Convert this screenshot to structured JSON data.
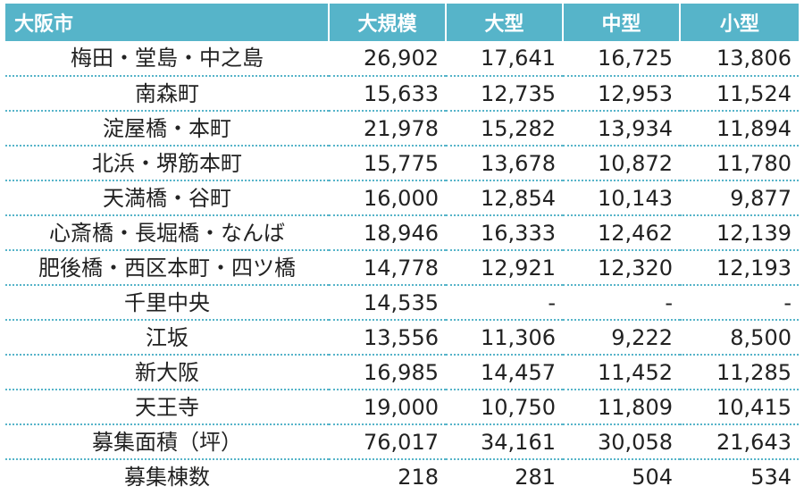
{
  "table": {
    "header": {
      "corner": "大阪市",
      "columns": [
        "大規模",
        "大型",
        "中型",
        "小型"
      ]
    },
    "rows": [
      {
        "name": "梅田・堂島・中之島",
        "values": [
          "26,902",
          "17,641",
          "16,725",
          "13,806"
        ]
      },
      {
        "name": "南森町",
        "values": [
          "15,633",
          "12,735",
          "12,953",
          "11,524"
        ]
      },
      {
        "name": "淀屋橋・本町",
        "values": [
          "21,978",
          "15,282",
          "13,934",
          "11,894"
        ]
      },
      {
        "name": "北浜・堺筋本町",
        "values": [
          "15,775",
          "13,678",
          "10,872",
          "11,780"
        ]
      },
      {
        "name": "天満橋・谷町",
        "values": [
          "16,000",
          "12,854",
          "10,143",
          "9,877"
        ]
      },
      {
        "name": "心斎橋・長堀橋・なんば",
        "values": [
          "18,946",
          "16,333",
          "12,462",
          "12,139"
        ]
      },
      {
        "name": "肥後橋・西区本町・四ツ橋",
        "values": [
          "14,778",
          "12,921",
          "12,320",
          "12,193"
        ]
      },
      {
        "name": "千里中央",
        "values": [
          "14,535",
          "-",
          "-",
          "-"
        ]
      },
      {
        "name": "江坂",
        "values": [
          "13,556",
          "11,306",
          "9,222",
          "8,500"
        ]
      },
      {
        "name": "新大阪",
        "values": [
          "16,985",
          "14,457",
          "11,452",
          "11,285"
        ]
      },
      {
        "name": "天王寺",
        "values": [
          "19,000",
          "10,750",
          "11,809",
          "10,415"
        ]
      },
      {
        "name": "募集面積（坪）",
        "values": [
          "76,017",
          "34,161",
          "30,058",
          "21,643"
        ]
      },
      {
        "name": "募集棟数",
        "values": [
          "218",
          "281",
          "504",
          "534"
        ]
      }
    ]
  },
  "colors": {
    "header_bg": "#56b4c9",
    "header_text": "#ffffff",
    "row_divider": "#56b4c9",
    "body_text": "#222222"
  }
}
